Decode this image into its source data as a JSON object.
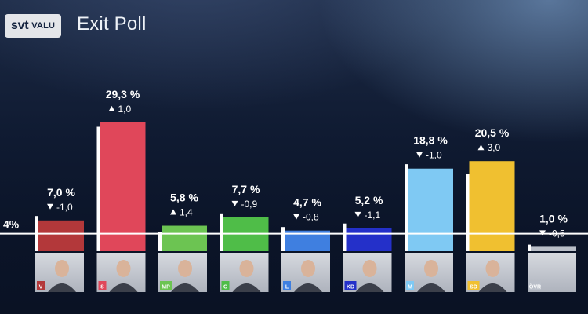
{
  "header": {
    "logo_text": "svt",
    "logo_sub": "VALU",
    "title": "Exit Poll"
  },
  "colors": {
    "background": "#0f1a31",
    "baseline": "#ffffff",
    "label_text": "#ffffff",
    "portrait_bg": "#c9ccd3"
  },
  "chart_data": {
    "type": "bar",
    "title": "Exit Poll",
    "threshold_label": "4%",
    "threshold_value": 4.0,
    "categories": [
      "V",
      "S",
      "MP",
      "C",
      "L",
      "KD",
      "M",
      "SD",
      "ÖVR"
    ],
    "values": [
      7.0,
      29.3,
      5.8,
      7.7,
      4.7,
      5.2,
      18.8,
      20.5,
      1.0
    ],
    "value_labels": [
      "7,0 %",
      "29,3 %",
      "5,8 %",
      "7,7 %",
      "4,7 %",
      "5,2 %",
      "18,8 %",
      "20,5 %",
      "1,0 %"
    ],
    "changes": [
      -1.0,
      1.0,
      1.4,
      -0.9,
      -0.8,
      -1.1,
      -1.0,
      3.0,
      -0.5
    ],
    "change_labels": [
      "-1,0",
      "1,0",
      "1,4",
      "-0,9",
      "-0,8",
      "-1,1",
      "-1,0",
      "3,0",
      "-0,5"
    ],
    "previous_values": [
      8.0,
      28.3,
      4.4,
      8.6,
      5.5,
      6.3,
      19.8,
      17.5,
      1.5
    ],
    "bar_colors": [
      "#b3383a",
      "#e0475a",
      "#6cc452",
      "#4fbd48",
      "#3f7fe0",
      "#2430c9",
      "#7fc9f3",
      "#f0c030",
      "#b9bec8"
    ],
    "icons": [
      "portrait-icon",
      "portrait-icon",
      "portrait-icon",
      "portrait-icon",
      "portrait-icon",
      "portrait-icon",
      "portrait-icon",
      "portrait-icon",
      "portrait-icon"
    ],
    "ylim": [
      0,
      30
    ],
    "legend": "none",
    "grid": false
  }
}
